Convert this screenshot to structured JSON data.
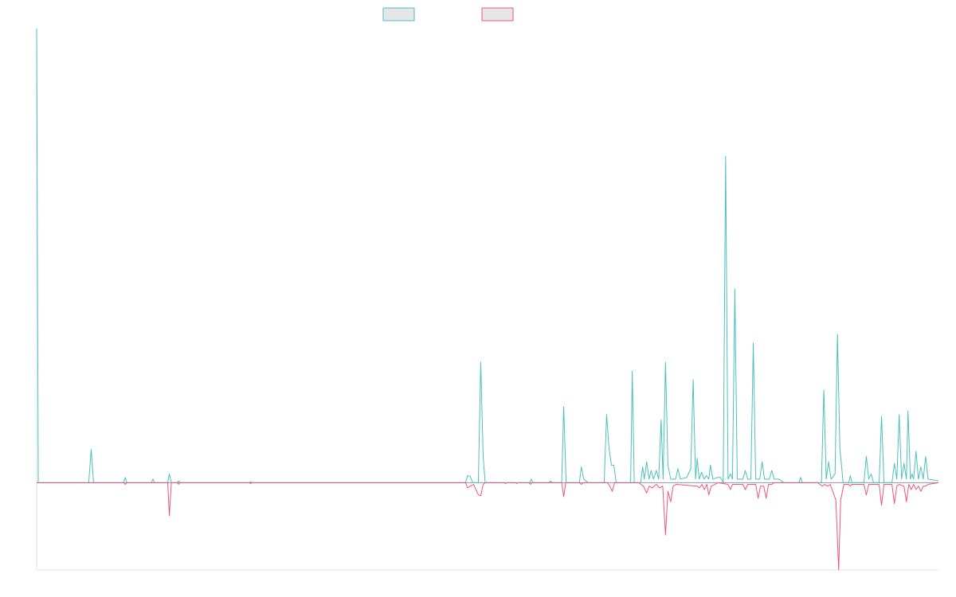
{
  "chart_data": {
    "type": "line",
    "title": "",
    "xlabel": "",
    "ylabel": "",
    "x_range": [
      0,
      225
    ],
    "ylim": [
      -100,
      520
    ],
    "grid": false,
    "legend": {
      "placement": "top-center"
    },
    "colors": {
      "series_a": "#4bc0c0",
      "series_b": "#f0557a",
      "legend_fill": "#e6e6e6"
    },
    "series": [
      {
        "color": "#4bc0c0",
        "points": [
          [
            0,
            520
          ],
          [
            0.4,
            0
          ],
          [
            13,
            0
          ],
          [
            13.6,
            38
          ],
          [
            14.2,
            0
          ],
          [
            21.7,
            0
          ],
          [
            22.1,
            6
          ],
          [
            22.5,
            0
          ],
          [
            28.6,
            0
          ],
          [
            29,
            4
          ],
          [
            29.4,
            0
          ],
          [
            32.7,
            0
          ],
          [
            33.1,
            10
          ],
          [
            33.6,
            0
          ],
          [
            35.1,
            0
          ],
          [
            35.4,
            2
          ],
          [
            35.8,
            0
          ],
          [
            53,
            0
          ],
          [
            53.4,
            1
          ],
          [
            53.8,
            0
          ],
          [
            107,
            0
          ],
          [
            107.5,
            8
          ],
          [
            108.2,
            7
          ],
          [
            108.8,
            0
          ],
          [
            110.2,
            0
          ],
          [
            110.8,
            138
          ],
          [
            111.4,
            30
          ],
          [
            111.9,
            0
          ],
          [
            123,
            0
          ],
          [
            123.4,
            4
          ],
          [
            123.8,
            0
          ],
          [
            127.8,
            0
          ],
          [
            128.2,
            2
          ],
          [
            128.6,
            0
          ],
          [
            131,
            0
          ],
          [
            131.5,
            87
          ],
          [
            132.1,
            0
          ],
          [
            135.4,
            0
          ],
          [
            135.9,
            18
          ],
          [
            136.5,
            4
          ],
          [
            137.6,
            0
          ],
          [
            141.6,
            0
          ],
          [
            142.2,
            78
          ],
          [
            142.8,
            40
          ],
          [
            143.4,
            20
          ],
          [
            144,
            20
          ],
          [
            144.6,
            0
          ],
          [
            148.2,
            0
          ],
          [
            148.6,
            128
          ],
          [
            149.1,
            0
          ],
          [
            150.7,
            0
          ],
          [
            151.2,
            18
          ],
          [
            151.6,
            4
          ],
          [
            152.2,
            24
          ],
          [
            152.8,
            4
          ],
          [
            153.3,
            14
          ],
          [
            153.9,
            4
          ],
          [
            154.6,
            14
          ],
          [
            155.2,
            4
          ],
          [
            155.8,
            72
          ],
          [
            156.3,
            4
          ],
          [
            156.9,
            138
          ],
          [
            157.5,
            20
          ],
          [
            158.2,
            4
          ],
          [
            159.4,
            4
          ],
          [
            160,
            16
          ],
          [
            160.6,
            4
          ],
          [
            162.2,
            6
          ],
          [
            163.2,
            16
          ],
          [
            163.8,
            118
          ],
          [
            164.4,
            4
          ],
          [
            164.8,
            28
          ],
          [
            165.3,
            4
          ],
          [
            165.9,
            12
          ],
          [
            166.5,
            4
          ],
          [
            167.1,
            8
          ],
          [
            167.7,
            4
          ],
          [
            168.1,
            20
          ],
          [
            168.7,
            4
          ],
          [
            170,
            6
          ],
          [
            170.6,
            6
          ],
          [
            171.3,
            0
          ],
          [
            171.9,
            374
          ],
          [
            172.5,
            4
          ],
          [
            173.1,
            10
          ],
          [
            173.6,
            4
          ],
          [
            174.2,
            222
          ],
          [
            174.8,
            4
          ],
          [
            176.2,
            4
          ],
          [
            176.8,
            14
          ],
          [
            177.4,
            4
          ],
          [
            178.2,
            4
          ],
          [
            178.8,
            160
          ],
          [
            179.4,
            4
          ],
          [
            180.4,
            4
          ],
          [
            181,
            24
          ],
          [
            181.6,
            4
          ],
          [
            182.8,
            4
          ],
          [
            183.4,
            14
          ],
          [
            184,
            4
          ],
          [
            185.2,
            4
          ],
          [
            185.8,
            2
          ],
          [
            186.4,
            0
          ],
          [
            190.2,
            0
          ],
          [
            190.6,
            6
          ],
          [
            191,
            0
          ],
          [
            195.8,
            0
          ],
          [
            196.4,
            106
          ],
          [
            197,
            4
          ],
          [
            197.6,
            24
          ],
          [
            198.2,
            4
          ],
          [
            199.2,
            10
          ],
          [
            199.8,
            170
          ],
          [
            200.4,
            40
          ],
          [
            201.2,
            0
          ],
          [
            202.6,
            0
          ],
          [
            203,
            8
          ],
          [
            203.4,
            0
          ],
          [
            206.4,
            0
          ],
          [
            207,
            30
          ],
          [
            207.6,
            4
          ],
          [
            208.2,
            10
          ],
          [
            208.8,
            0
          ],
          [
            210.2,
            0
          ],
          [
            210.8,
            76
          ],
          [
            211.4,
            0
          ],
          [
            213.4,
            0
          ],
          [
            214,
            22
          ],
          [
            214.6,
            4
          ],
          [
            215.2,
            78
          ],
          [
            215.8,
            4
          ],
          [
            216.4,
            22
          ],
          [
            217,
            4
          ],
          [
            217.4,
            82
          ],
          [
            218,
            4
          ],
          [
            218.4,
            10
          ],
          [
            218.8,
            4
          ],
          [
            219.4,
            36
          ],
          [
            220,
            4
          ],
          [
            220.6,
            18
          ],
          [
            221.2,
            4
          ],
          [
            221.8,
            30
          ],
          [
            222.4,
            4
          ],
          [
            225,
            2
          ]
        ]
      },
      {
        "color": "#f0557a",
        "points": [
          [
            0,
            0
          ],
          [
            21.7,
            0
          ],
          [
            22.1,
            -2
          ],
          [
            22.5,
            0
          ],
          [
            32.7,
            0
          ],
          [
            33.1,
            -38
          ],
          [
            33.6,
            0
          ],
          [
            35.1,
            0
          ],
          [
            35.4,
            -2
          ],
          [
            35.8,
            0
          ],
          [
            53,
            0
          ],
          [
            53.4,
            -1
          ],
          [
            53.8,
            0
          ],
          [
            107,
            0
          ],
          [
            107.5,
            -6
          ],
          [
            108.2,
            -4
          ],
          [
            109,
            -2
          ],
          [
            110.2,
            -14
          ],
          [
            110.8,
            -15
          ],
          [
            111.4,
            -2
          ],
          [
            112,
            0
          ],
          [
            116.6,
            0
          ],
          [
            117,
            -1
          ],
          [
            117.4,
            0
          ],
          [
            119.4,
            0
          ],
          [
            119.8,
            -1
          ],
          [
            120.2,
            0
          ],
          [
            122.8,
            0
          ],
          [
            123.2,
            -2
          ],
          [
            123.6,
            0
          ],
          [
            131,
            0
          ],
          [
            131.5,
            -16
          ],
          [
            132,
            0
          ],
          [
            135.4,
            0
          ],
          [
            135.9,
            -2
          ],
          [
            136.5,
            0
          ],
          [
            142.4,
            0
          ],
          [
            143,
            -4
          ],
          [
            143.6,
            -10
          ],
          [
            144.2,
            0
          ],
          [
            150.2,
            0
          ],
          [
            150.8,
            -2
          ],
          [
            151.4,
            -4
          ],
          [
            152.2,
            -12
          ],
          [
            152.8,
            -4
          ],
          [
            153.6,
            -6
          ],
          [
            154.6,
            -2
          ],
          [
            155.4,
            -6
          ],
          [
            156.2,
            -4
          ],
          [
            156.9,
            -60
          ],
          [
            157.5,
            -10
          ],
          [
            158.2,
            -22
          ],
          [
            158.8,
            -4
          ],
          [
            159.6,
            -2
          ],
          [
            164.8,
            -4
          ],
          [
            165.4,
            -6
          ],
          [
            166,
            -2
          ],
          [
            166.6,
            -8
          ],
          [
            167.2,
            -2
          ],
          [
            167.7,
            -14
          ],
          [
            168.3,
            -4
          ],
          [
            169.2,
            -2
          ],
          [
            170,
            0
          ],
          [
            172.5,
            -2
          ],
          [
            173.1,
            -8
          ],
          [
            173.6,
            -2
          ],
          [
            176.2,
            -2
          ],
          [
            176.8,
            -8
          ],
          [
            177.4,
            -2
          ],
          [
            179.4,
            -2
          ],
          [
            180,
            -18
          ],
          [
            180.6,
            -4
          ],
          [
            181.4,
            -4
          ],
          [
            182,
            -18
          ],
          [
            182.6,
            -2
          ],
          [
            183.4,
            -2
          ],
          [
            184,
            0
          ],
          [
            194.8,
            0
          ],
          [
            195.4,
            -2
          ],
          [
            196,
            -4
          ],
          [
            196.6,
            -2
          ],
          [
            197.4,
            -4
          ],
          [
            198,
            -2
          ],
          [
            199.4,
            -20
          ],
          [
            200.1,
            -100
          ],
          [
            200.6,
            -20
          ],
          [
            201.4,
            -2
          ],
          [
            202.6,
            -2
          ],
          [
            203,
            -4
          ],
          [
            203.4,
            -2
          ],
          [
            206.4,
            -2
          ],
          [
            207,
            -14
          ],
          [
            207.6,
            -2
          ],
          [
            210.2,
            -2
          ],
          [
            210.8,
            -26
          ],
          [
            211.4,
            -2
          ],
          [
            213.4,
            -2
          ],
          [
            214,
            -24
          ],
          [
            214.6,
            -4
          ],
          [
            215.2,
            -2
          ],
          [
            216.4,
            -4
          ],
          [
            217,
            -22
          ],
          [
            217.6,
            -2
          ],
          [
            218.2,
            -8
          ],
          [
            218.8,
            -2
          ],
          [
            219.4,
            -8
          ],
          [
            220,
            -4
          ],
          [
            220.6,
            -10
          ],
          [
            221.2,
            -4
          ],
          [
            221.8,
            -4
          ],
          [
            222.4,
            -2
          ],
          [
            225,
            0
          ]
        ]
      }
    ]
  }
}
